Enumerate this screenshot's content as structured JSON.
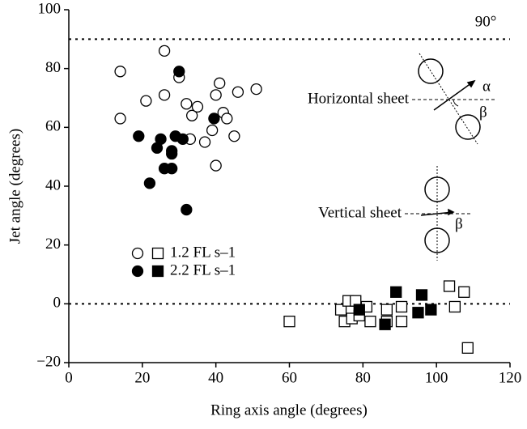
{
  "chart_data": {
    "type": "scatter",
    "x_label": "Ring axis angle (degrees)",
    "y_label": "Jet angle (degrees)",
    "xlim": [
      0,
      120
    ],
    "xticks": [
      0,
      20,
      40,
      60,
      80,
      100,
      120
    ],
    "ylim": [
      -20,
      100
    ],
    "yticks": [
      {
        "value": -20,
        "label": "−20"
      },
      0,
      20,
      40,
      60,
      80,
      100
    ],
    "reference_lines": [
      90,
      0
    ],
    "annotations": {
      "angle_90": "90°",
      "horizontal": "Horizontal sheet",
      "alpha": "α",
      "beta_h": "β",
      "vertical": "Vertical sheet",
      "beta_v": "β"
    },
    "series": [
      {
        "name": "1.2 FL s–1",
        "color": "#000000",
        "filled": false,
        "circles": {
          "x": [
            14,
            14,
            21,
            26,
            26,
            30,
            32,
            33.5,
            35,
            33,
            37,
            39,
            40,
            41,
            42,
            43,
            45,
            46,
            51,
            40
          ],
          "y": [
            79,
            63,
            69,
            86,
            71,
            77,
            68,
            64,
            67,
            56,
            55,
            59,
            71,
            75,
            65,
            63,
            57,
            72,
            73,
            47
          ]
        },
        "squares": {
          "x": [
            60,
            74,
            75,
            76,
            77,
            78,
            79,
            81,
            82,
            86.5,
            86.5,
            90.5,
            90.5,
            103.5,
            105,
            107.5,
            108.5
          ],
          "y": [
            -6,
            -2,
            -6,
            1,
            -5,
            1,
            -4,
            -1,
            -6,
            -2,
            -6,
            -1,
            -6,
            6,
            -1,
            4,
            -15
          ]
        }
      },
      {
        "name": "2.2 FL s–1",
        "color": "#000000",
        "filled": true,
        "circles": {
          "x": [
            19,
            24,
            25,
            30,
            31,
            28,
            26,
            28,
            28,
            29,
            39.5,
            22,
            32
          ],
          "y": [
            57,
            53,
            56,
            79,
            56,
            51,
            46,
            46,
            52,
            57,
            63,
            41,
            32
          ]
        },
        "squares": {
          "x": [
            79,
            86,
            89,
            95,
            96,
            98.5
          ],
          "y": [
            -2,
            -7,
            4,
            -3,
            3,
            -2
          ]
        }
      }
    ]
  }
}
